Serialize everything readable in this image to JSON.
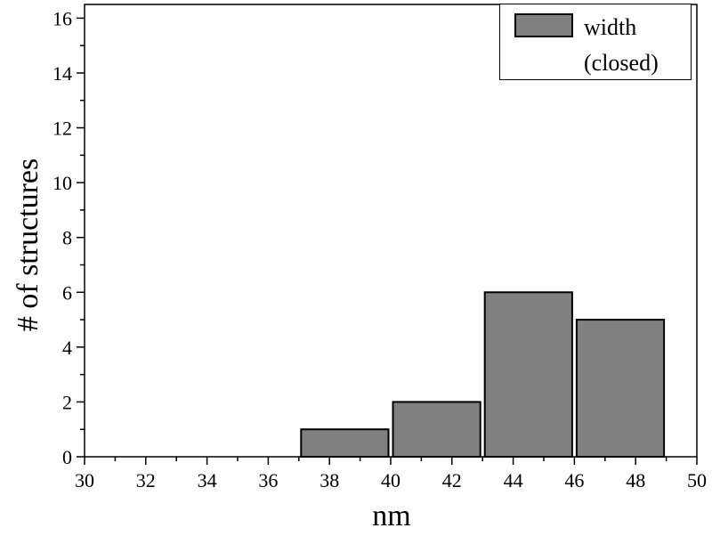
{
  "chart_data": {
    "type": "histogram",
    "xlabel": "nm",
    "ylabel": "# of structures",
    "bins": [
      37,
      40,
      43,
      46,
      49
    ],
    "series": [
      {
        "name": "width (closed)",
        "color": "#808080",
        "values": [
          1,
          2,
          6,
          5
        ]
      }
    ],
    "xlim": [
      30,
      50
    ],
    "ylim": [
      0,
      16.5
    ],
    "xticks": [
      30,
      32,
      34,
      36,
      38,
      40,
      42,
      44,
      46,
      48,
      50
    ],
    "yticks": [
      0,
      2,
      4,
      6,
      8,
      10,
      12,
      14,
      16
    ],
    "legend": "upper right"
  }
}
